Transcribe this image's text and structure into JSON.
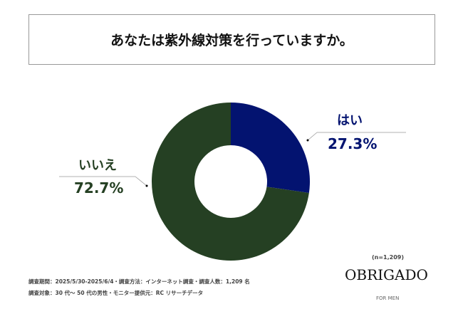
{
  "title": "あなたは紫外線対策を行っていますか。",
  "chart_data": {
    "type": "pie",
    "donut": true,
    "categories": [
      "はい",
      "いいえ"
    ],
    "values": [
      27.3,
      72.7
    ],
    "labels": [
      "27.3%",
      "72.7%"
    ],
    "colors": [
      "#031370",
      "#254023"
    ]
  },
  "sample": "(n=1,209)",
  "footnotes": [
    "調査期間：2025/5/30-2025/6/4・調査方法：インターネット調査・調査人数：1,209 名",
    "調査対象：30 代～ 50 代の男性・モニター提供元：RC リサーチデータ"
  ],
  "logo": {
    "brand": "OBRIGADO",
    "sub": "FOR MEN"
  }
}
